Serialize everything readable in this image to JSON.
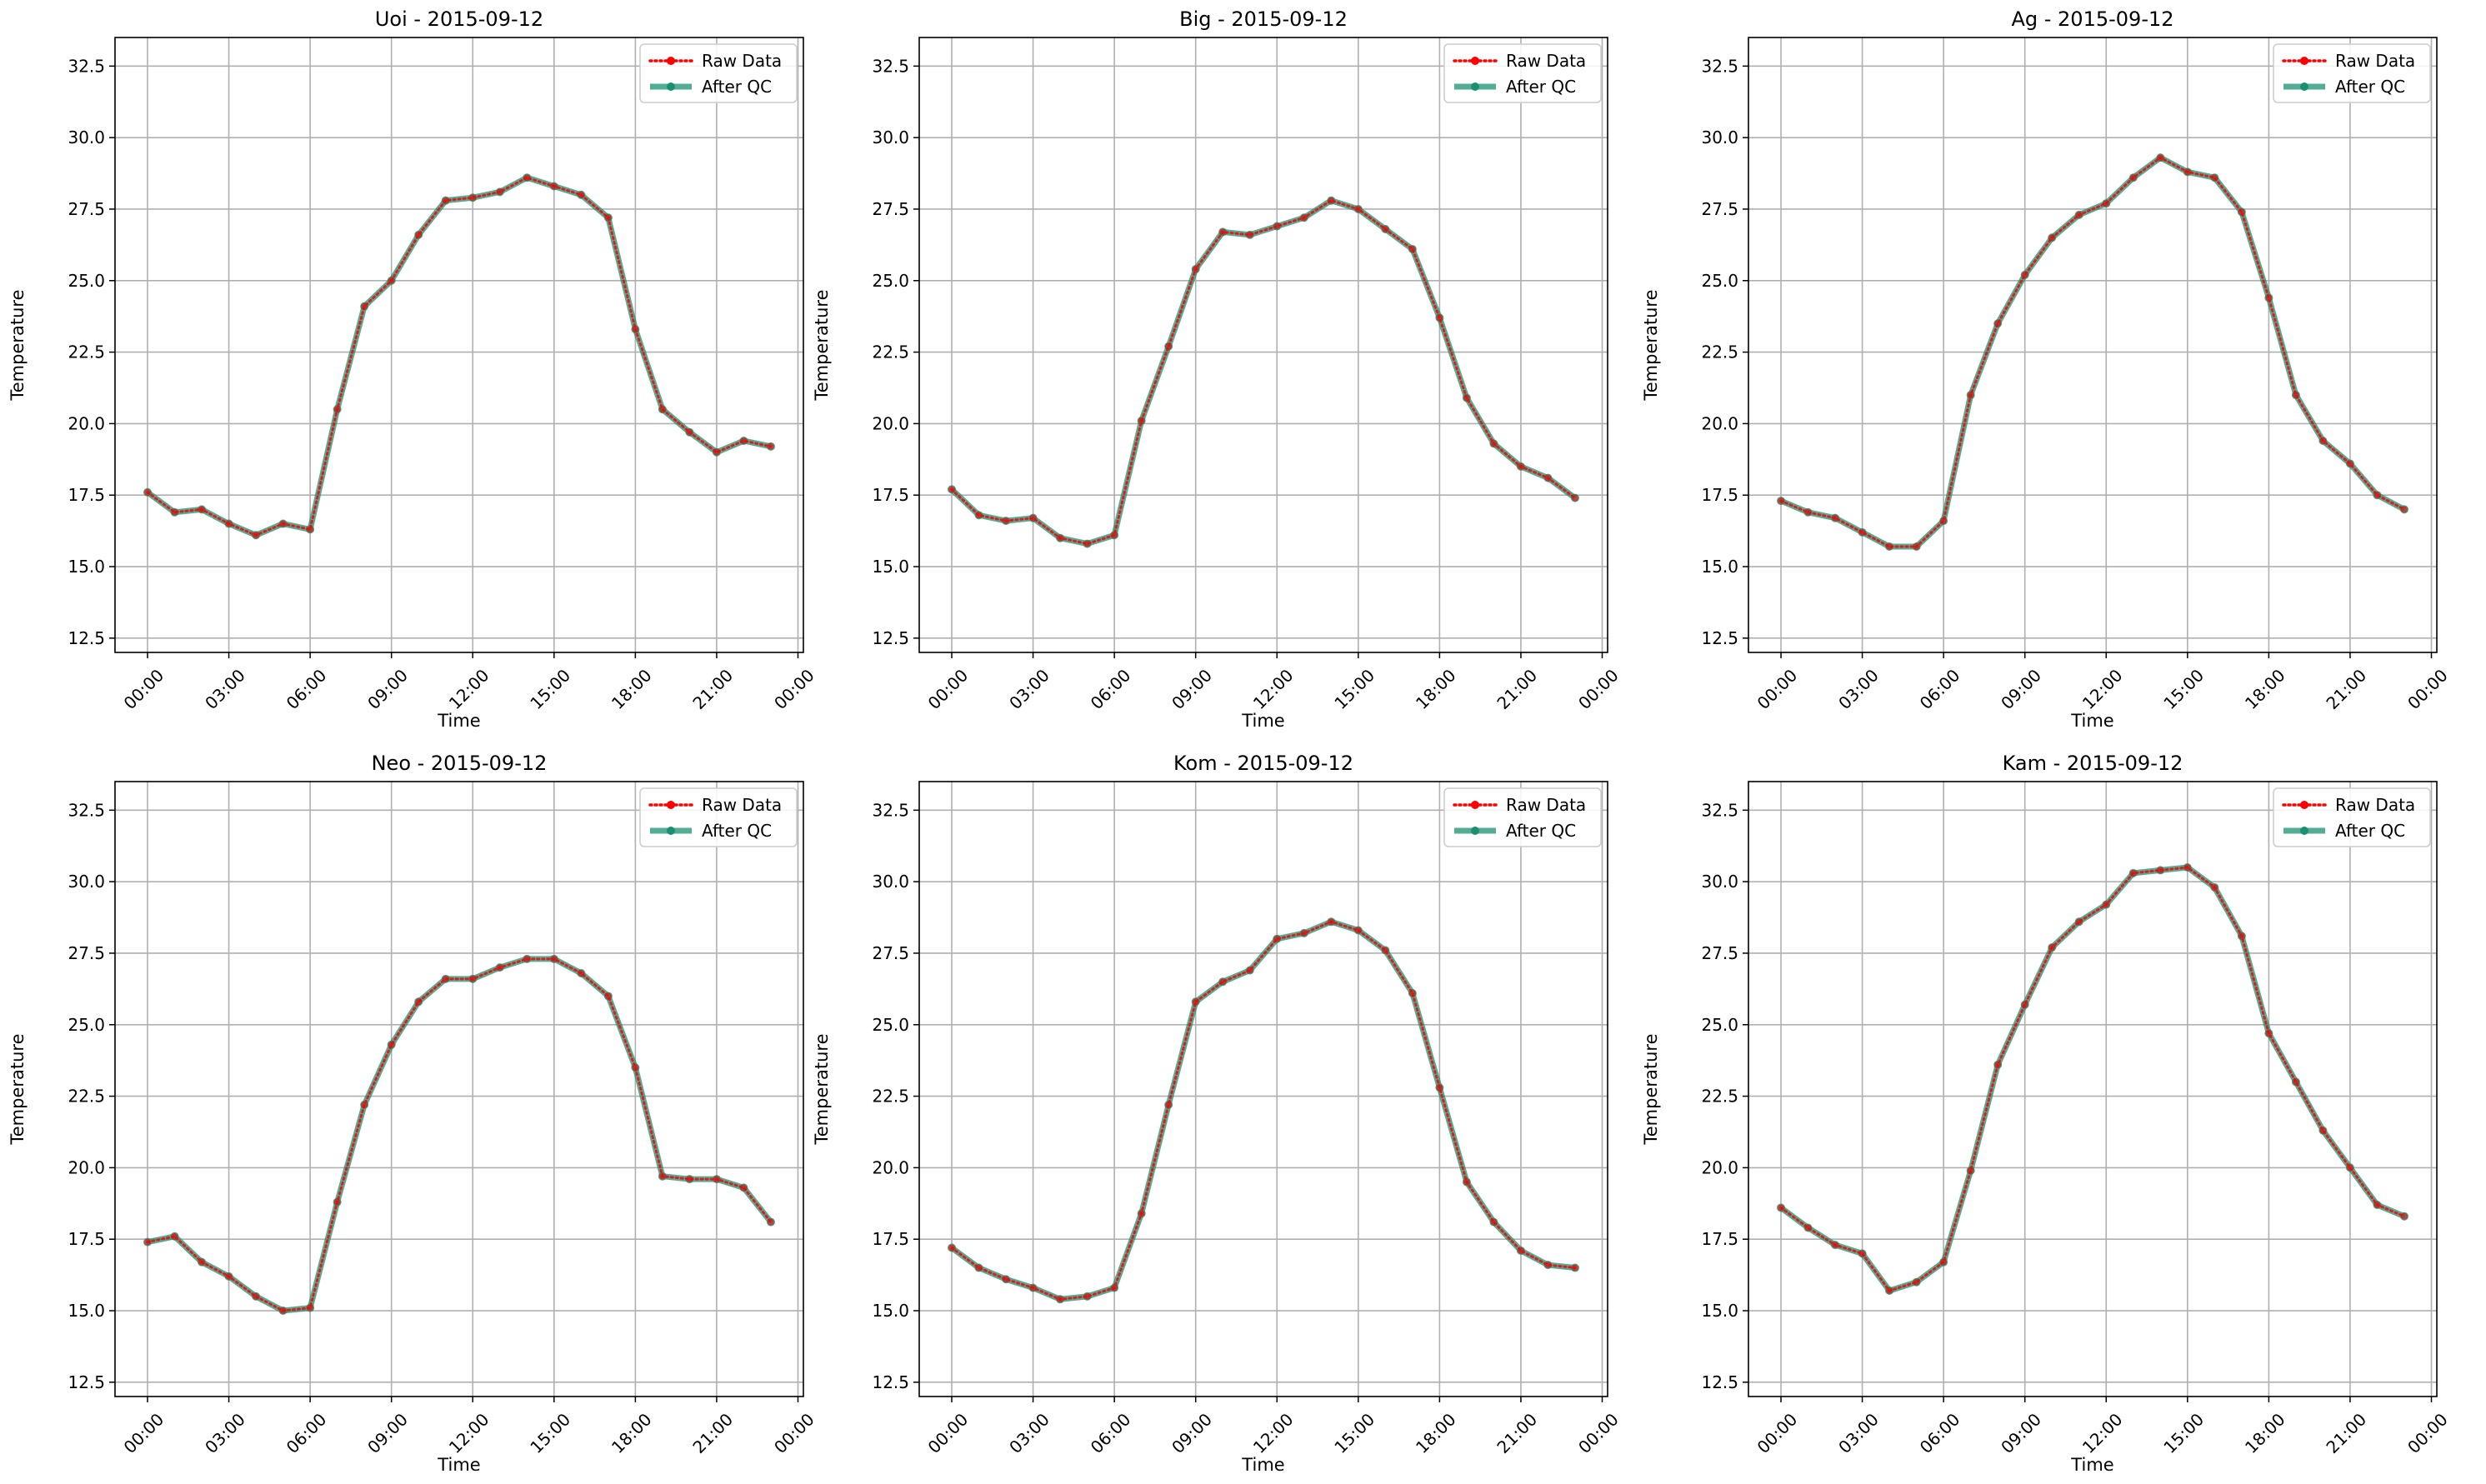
{
  "chart_data": [
    {
      "type": "line",
      "title": "Uoi - 2015-09-12",
      "xlabel": "Time",
      "ylabel": "Temperature",
      "xlim": [
        -1.2,
        24.2
      ],
      "ylim": [
        12.0,
        33.5
      ],
      "yticks": [
        12.5,
        15.0,
        17.5,
        20.0,
        22.5,
        25.0,
        27.5,
        30.0,
        32.5
      ],
      "xticks": [
        0,
        3,
        6,
        9,
        12,
        15,
        18,
        21,
        24
      ],
      "xtick_labels": [
        "00:00",
        "03:00",
        "06:00",
        "09:00",
        "12:00",
        "15:00",
        "18:00",
        "21:00",
        "00:00"
      ],
      "grid": true,
      "legend_position": "top-right",
      "x": [
        0,
        1,
        2,
        3,
        4,
        5,
        6,
        7,
        8,
        9,
        10,
        11,
        12,
        13,
        14,
        15,
        16,
        17,
        18,
        19,
        20,
        21,
        22,
        23
      ],
      "series": [
        {
          "name": "Raw Data",
          "color": "#ff0000",
          "style": "dotted",
          "values": [
            17.6,
            16.9,
            17.0,
            16.5,
            16.1,
            16.5,
            16.3,
            20.5,
            24.1,
            25.0,
            26.6,
            27.8,
            27.9,
            28.1,
            28.6,
            28.3,
            28.0,
            27.2,
            23.3,
            20.5,
            19.7,
            19.0,
            19.4,
            19.2
          ]
        },
        {
          "name": "After QC",
          "color": "#1a9070",
          "style": "solid",
          "values": [
            17.6,
            16.9,
            17.0,
            16.5,
            16.1,
            16.5,
            16.3,
            20.5,
            24.1,
            25.0,
            26.6,
            27.8,
            27.9,
            28.1,
            28.6,
            28.3,
            28.0,
            27.2,
            23.3,
            20.5,
            19.7,
            19.0,
            19.4,
            19.2
          ]
        }
      ]
    },
    {
      "type": "line",
      "title": "Big - 2015-09-12",
      "xlabel": "Time",
      "ylabel": "Temperature",
      "xlim": [
        -1.2,
        24.2
      ],
      "ylim": [
        12.0,
        33.5
      ],
      "yticks": [
        12.5,
        15.0,
        17.5,
        20.0,
        22.5,
        25.0,
        27.5,
        30.0,
        32.5
      ],
      "xticks": [
        0,
        3,
        6,
        9,
        12,
        15,
        18,
        21,
        24
      ],
      "xtick_labels": [
        "00:00",
        "03:00",
        "06:00",
        "09:00",
        "12:00",
        "15:00",
        "18:00",
        "21:00",
        "00:00"
      ],
      "grid": true,
      "legend_position": "top-right",
      "x": [
        0,
        1,
        2,
        3,
        4,
        5,
        6,
        7,
        8,
        9,
        10,
        11,
        12,
        13,
        14,
        15,
        16,
        17,
        18,
        19,
        20,
        21,
        22,
        23
      ],
      "series": [
        {
          "name": "Raw Data",
          "color": "#ff0000",
          "style": "dotted",
          "values": [
            17.7,
            16.8,
            16.6,
            16.7,
            16.0,
            15.8,
            16.1,
            20.1,
            22.7,
            25.4,
            26.7,
            26.6,
            26.9,
            27.2,
            27.8,
            27.5,
            26.8,
            26.1,
            23.7,
            20.9,
            19.3,
            18.5,
            18.1,
            17.4
          ]
        },
        {
          "name": "After QC",
          "color": "#1a9070",
          "style": "solid",
          "values": [
            17.7,
            16.8,
            16.6,
            16.7,
            16.0,
            15.8,
            16.1,
            20.1,
            22.7,
            25.4,
            26.7,
            26.6,
            26.9,
            27.2,
            27.8,
            27.5,
            26.8,
            26.1,
            23.7,
            20.9,
            19.3,
            18.5,
            18.1,
            17.4
          ]
        }
      ]
    },
    {
      "type": "line",
      "title": "Ag - 2015-09-12",
      "xlabel": "Time",
      "ylabel": "Temperature",
      "xlim": [
        -1.2,
        24.2
      ],
      "ylim": [
        12.0,
        33.5
      ],
      "yticks": [
        12.5,
        15.0,
        17.5,
        20.0,
        22.5,
        25.0,
        27.5,
        30.0,
        32.5
      ],
      "xticks": [
        0,
        3,
        6,
        9,
        12,
        15,
        18,
        21,
        24
      ],
      "xtick_labels": [
        "00:00",
        "03:00",
        "06:00",
        "09:00",
        "12:00",
        "15:00",
        "18:00",
        "21:00",
        "00:00"
      ],
      "grid": true,
      "legend_position": "top-right",
      "x": [
        0,
        1,
        2,
        3,
        4,
        5,
        6,
        7,
        8,
        9,
        10,
        11,
        12,
        13,
        14,
        15,
        16,
        17,
        18,
        19,
        20,
        21,
        22,
        23
      ],
      "series": [
        {
          "name": "Raw Data",
          "color": "#ff0000",
          "style": "dotted",
          "values": [
            17.3,
            16.9,
            16.7,
            16.2,
            15.7,
            15.7,
            16.6,
            21.0,
            23.5,
            25.2,
            26.5,
            27.3,
            27.7,
            28.6,
            29.3,
            28.8,
            28.6,
            27.4,
            24.4,
            21.0,
            19.4,
            18.6,
            17.5,
            17.0
          ]
        },
        {
          "name": "After QC",
          "color": "#1a9070",
          "style": "solid",
          "values": [
            17.3,
            16.9,
            16.7,
            16.2,
            15.7,
            15.7,
            16.6,
            21.0,
            23.5,
            25.2,
            26.5,
            27.3,
            27.7,
            28.6,
            29.3,
            28.8,
            28.6,
            27.4,
            24.4,
            21.0,
            19.4,
            18.6,
            17.5,
            17.0
          ]
        }
      ]
    },
    {
      "type": "line",
      "title": "Neo - 2015-09-12",
      "xlabel": "Time",
      "ylabel": "Temperature",
      "xlim": [
        -1.2,
        24.2
      ],
      "ylim": [
        12.0,
        33.5
      ],
      "yticks": [
        12.5,
        15.0,
        17.5,
        20.0,
        22.5,
        25.0,
        27.5,
        30.0,
        32.5
      ],
      "xticks": [
        0,
        3,
        6,
        9,
        12,
        15,
        18,
        21,
        24
      ],
      "xtick_labels": [
        "00:00",
        "03:00",
        "06:00",
        "09:00",
        "12:00",
        "15:00",
        "18:00",
        "21:00",
        "00:00"
      ],
      "grid": true,
      "legend_position": "top-right",
      "x": [
        0,
        1,
        2,
        3,
        4,
        5,
        6,
        7,
        8,
        9,
        10,
        11,
        12,
        13,
        14,
        15,
        16,
        17,
        18,
        19,
        20,
        21,
        22,
        23
      ],
      "series": [
        {
          "name": "Raw Data",
          "color": "#ff0000",
          "style": "dotted",
          "values": [
            17.4,
            17.6,
            16.7,
            16.2,
            15.5,
            15.0,
            15.1,
            18.8,
            22.2,
            24.3,
            25.8,
            26.6,
            26.6,
            27.0,
            27.3,
            27.3,
            26.8,
            26.0,
            23.5,
            19.7,
            19.6,
            19.6,
            19.3,
            18.1
          ]
        },
        {
          "name": "After QC",
          "color": "#1a9070",
          "style": "solid",
          "values": [
            17.4,
            17.6,
            16.7,
            16.2,
            15.5,
            15.0,
            15.1,
            18.8,
            22.2,
            24.3,
            25.8,
            26.6,
            26.6,
            27.0,
            27.3,
            27.3,
            26.8,
            26.0,
            23.5,
            19.7,
            19.6,
            19.6,
            19.3,
            18.1
          ]
        }
      ]
    },
    {
      "type": "line",
      "title": "Kom - 2015-09-12",
      "xlabel": "Time",
      "ylabel": "Temperature",
      "xlim": [
        -1.2,
        24.2
      ],
      "ylim": [
        12.0,
        33.5
      ],
      "yticks": [
        12.5,
        15.0,
        17.5,
        20.0,
        22.5,
        25.0,
        27.5,
        30.0,
        32.5
      ],
      "xticks": [
        0,
        3,
        6,
        9,
        12,
        15,
        18,
        21,
        24
      ],
      "xtick_labels": [
        "00:00",
        "03:00",
        "06:00",
        "09:00",
        "12:00",
        "15:00",
        "18:00",
        "21:00",
        "00:00"
      ],
      "grid": true,
      "legend_position": "top-right",
      "x": [
        0,
        1,
        2,
        3,
        4,
        5,
        6,
        7,
        8,
        9,
        10,
        11,
        12,
        13,
        14,
        15,
        16,
        17,
        18,
        19,
        20,
        21,
        22,
        23
      ],
      "series": [
        {
          "name": "Raw Data",
          "color": "#ff0000",
          "style": "dotted",
          "values": [
            17.2,
            16.5,
            16.1,
            15.8,
            15.4,
            15.5,
            15.8,
            18.4,
            22.2,
            25.8,
            26.5,
            26.9,
            28.0,
            28.2,
            28.6,
            28.3,
            27.6,
            26.1,
            22.8,
            19.5,
            18.1,
            17.1,
            16.6,
            16.5
          ]
        },
        {
          "name": "After QC",
          "color": "#1a9070",
          "style": "solid",
          "values": [
            17.2,
            16.5,
            16.1,
            15.8,
            15.4,
            15.5,
            15.8,
            18.4,
            22.2,
            25.8,
            26.5,
            26.9,
            28.0,
            28.2,
            28.6,
            28.3,
            27.6,
            26.1,
            22.8,
            19.5,
            18.1,
            17.1,
            16.6,
            16.5
          ]
        }
      ]
    },
    {
      "type": "line",
      "title": "Kam - 2015-09-12",
      "xlabel": "Time",
      "ylabel": "Temperature",
      "xlim": [
        -1.2,
        24.2
      ],
      "ylim": [
        12.0,
        33.5
      ],
      "yticks": [
        12.5,
        15.0,
        17.5,
        20.0,
        22.5,
        25.0,
        27.5,
        30.0,
        32.5
      ],
      "xticks": [
        0,
        3,
        6,
        9,
        12,
        15,
        18,
        21,
        24
      ],
      "xtick_labels": [
        "00:00",
        "03:00",
        "06:00",
        "09:00",
        "12:00",
        "15:00",
        "18:00",
        "21:00",
        "00:00"
      ],
      "grid": true,
      "legend_position": "top-right",
      "x": [
        0,
        1,
        2,
        3,
        4,
        5,
        6,
        7,
        8,
        9,
        10,
        11,
        12,
        13,
        14,
        15,
        16,
        17,
        18,
        19,
        20,
        21,
        22,
        23
      ],
      "series": [
        {
          "name": "Raw Data",
          "color": "#ff0000",
          "style": "dotted",
          "values": [
            18.6,
            17.9,
            17.3,
            17.0,
            15.7,
            16.0,
            16.7,
            19.9,
            23.6,
            25.7,
            27.7,
            28.6,
            29.2,
            30.3,
            30.4,
            30.5,
            29.8,
            28.1,
            24.7,
            23.0,
            21.3,
            20.0,
            18.7,
            18.3
          ]
        },
        {
          "name": "After QC",
          "color": "#1a9070",
          "style": "solid",
          "values": [
            18.6,
            17.9,
            17.3,
            17.0,
            15.7,
            16.0,
            16.7,
            19.9,
            23.6,
            25.7,
            27.7,
            28.6,
            29.2,
            30.3,
            30.4,
            30.5,
            29.8,
            28.1,
            24.7,
            23.0,
            21.3,
            20.0,
            18.7,
            18.3
          ]
        }
      ]
    }
  ]
}
